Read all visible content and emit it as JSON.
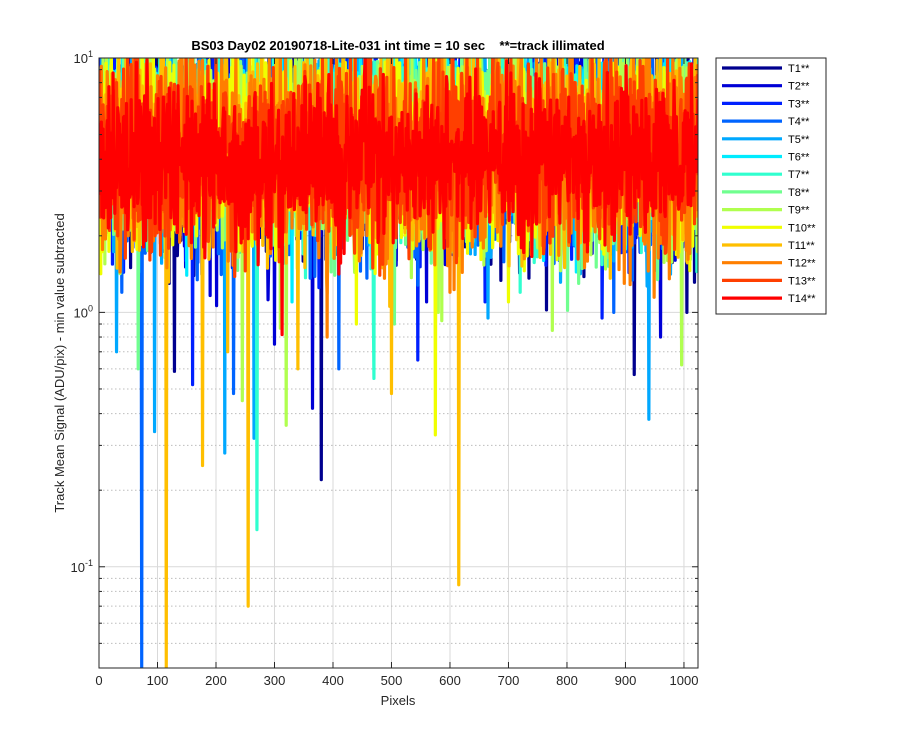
{
  "chart_data": {
    "type": "line",
    "title": "BS03 Day02 20190718-Lite-031 int time = 10 sec    **=track illimated",
    "xlabel": "Pixels",
    "ylabel": "Track Mean Signal (ADU/pix) - min value subtracted",
    "xlim": [
      0,
      1024
    ],
    "ylim": [
      0.04,
      10
    ],
    "yscale": "log",
    "grid": true,
    "legend_position": "outside-top-right",
    "x_ticks": [
      0,
      100,
      200,
      300,
      400,
      500,
      600,
      700,
      800,
      900,
      1000
    ],
    "x_tick_labels": [
      "0",
      "100",
      "200",
      "300",
      "400",
      "500",
      "600",
      "700",
      "800",
      "900",
      "1000"
    ],
    "y_ticks": [
      0.1,
      1,
      10
    ],
    "y_tick_labels": [
      {
        "base": "10",
        "exp": "-1"
      },
      {
        "base": "10",
        "exp": "0"
      },
      {
        "base": "10",
        "exp": "1"
      }
    ],
    "series": [
      {
        "name": "T1**",
        "color": "#00008f",
        "center": 4.6,
        "spread": 0.3,
        "dips": [
          [
            380,
            0.22
          ],
          [
            915,
            0.57
          ],
          [
            1005,
            1.0
          ],
          [
            120,
            1.3
          ]
        ]
      },
      {
        "name": "T2**",
        "color": "#0000d6",
        "center": 4.8,
        "spread": 0.3,
        "dips": [
          [
            365,
            0.42
          ],
          [
            300,
            0.75
          ],
          [
            560,
            1.1
          ],
          [
            960,
            0.8
          ]
        ]
      },
      {
        "name": "T3**",
        "color": "#0020ff",
        "center": 4.7,
        "spread": 0.3,
        "dips": [
          [
            160,
            0.52
          ],
          [
            545,
            0.65
          ],
          [
            860,
            0.95
          ],
          [
            660,
            1.1
          ]
        ]
      },
      {
        "name": "T4**",
        "color": "#0064ff",
        "center": 4.6,
        "spread": 0.3,
        "dips": [
          [
            73,
            0.04
          ],
          [
            230,
            0.48
          ],
          [
            410,
            0.6
          ],
          [
            880,
            1.0
          ]
        ]
      },
      {
        "name": "T5**",
        "color": "#00a8ff",
        "center": 4.7,
        "spread": 0.3,
        "dips": [
          [
            95,
            0.34
          ],
          [
            215,
            0.28
          ],
          [
            265,
            0.32
          ],
          [
            940,
            0.38
          ],
          [
            665,
            0.95
          ],
          [
            30,
            0.7
          ]
        ]
      },
      {
        "name": "T6**",
        "color": "#00ecff",
        "center": 6.6,
        "spread": 0.15,
        "dips": [
          [
            330,
            1.1
          ],
          [
            150,
            1.4
          ],
          [
            760,
            1.6
          ]
        ]
      },
      {
        "name": "T7**",
        "color": "#30ffcf",
        "center": 4.7,
        "spread": 0.28,
        "dips": [
          [
            270,
            0.14
          ],
          [
            470,
            0.55
          ],
          [
            720,
            1.2
          ]
        ]
      },
      {
        "name": "T8**",
        "color": "#70ff8f",
        "center": 4.5,
        "spread": 0.28,
        "dips": [
          [
            67,
            0.6
          ],
          [
            505,
            0.9
          ],
          [
            820,
            1.3
          ]
        ]
      },
      {
        "name": "T9**",
        "color": "#b0ff4f",
        "center": 4.6,
        "spread": 0.28,
        "dips": [
          [
            320,
            0.36
          ],
          [
            245,
            0.45
          ],
          [
            580,
            1.0
          ]
        ]
      },
      {
        "name": "T10**",
        "color": "#f0ff00",
        "center": 4.3,
        "spread": 0.28,
        "dips": [
          [
            575,
            0.33
          ],
          [
            440,
            0.9
          ],
          [
            700,
            1.1
          ]
        ]
      },
      {
        "name": "T11**",
        "color": "#ffbf00",
        "center": 4.4,
        "spread": 0.3,
        "dips": [
          [
            115,
            0.04
          ],
          [
            255,
            0.07
          ],
          [
            615,
            0.085
          ],
          [
            177,
            0.25
          ],
          [
            340,
            0.6
          ],
          [
            500,
            0.48
          ],
          [
            220,
            0.7
          ]
        ]
      },
      {
        "name": "T12**",
        "color": "#ff7f00",
        "center": 4.3,
        "spread": 0.3,
        "dips": [
          [
            390,
            0.8
          ],
          [
            600,
            1.2
          ],
          [
            830,
            1.5
          ]
        ]
      },
      {
        "name": "T13**",
        "color": "#ff3f00",
        "center": 4.2,
        "spread": 0.28,
        "dips": [
          [
            480,
            1.4
          ],
          [
            760,
            1.7
          ]
        ]
      },
      {
        "name": "T14**",
        "color": "#ff0000",
        "center": 4.0,
        "spread": 0.22,
        "dips": []
      }
    ]
  }
}
